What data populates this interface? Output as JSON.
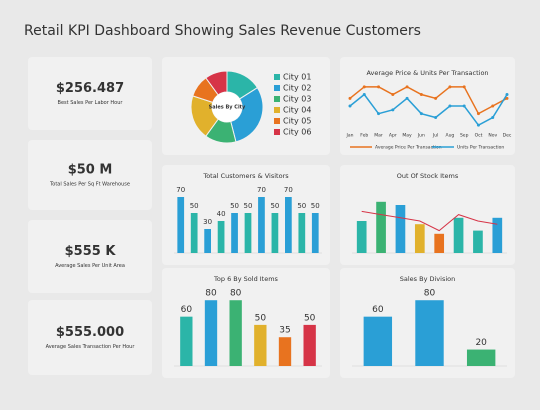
{
  "title": "Retail KPI Dashboard Showing Sales Revenue Customers",
  "kpis": [
    {
      "value": "$256.487",
      "label": "Best Sales Per Labor Hour"
    },
    {
      "value": "$50 M",
      "label": "Total Sales Per Sq Ft Warehouse"
    },
    {
      "value": "$555 K",
      "label": "Average Sales Per Unit Area"
    },
    {
      "value": "$555.000",
      "label": "Average Sales Transaction Per Hour"
    }
  ],
  "chart_data": [
    {
      "type": "pie",
      "title": "Sales By City",
      "donut": true,
      "categories": [
        "City 01",
        "City 02",
        "City 03",
        "City 04",
        "City 05",
        "City 06"
      ],
      "values": [
        16,
        30,
        14,
        20,
        10,
        10
      ],
      "colors": [
        "#2bb5a8",
        "#2a9fd6",
        "#3bb273",
        "#e1b12c",
        "#e8731f",
        "#d63447"
      ]
    },
    {
      "type": "line",
      "title": "Average Price & Units Per Transaction",
      "categories": [
        "Jan",
        "Feb",
        "Mar",
        "Apr",
        "May",
        "Jun",
        "Jul",
        "Aug",
        "Sep",
        "Oct",
        "Nov",
        "Dec"
      ],
      "series": [
        {
          "name": "Average Price Per Transaction",
          "color": "#e8731f",
          "values": [
            80,
            95,
            95,
            85,
            95,
            85,
            80,
            95,
            95,
            60,
            70,
            80
          ]
        },
        {
          "name": "Units Per Transaction",
          "color": "#2a9fd6",
          "values": [
            70,
            85,
            60,
            65,
            80,
            60,
            55,
            70,
            70,
            45,
            55,
            85
          ]
        }
      ],
      "ylim": [
        40,
        100
      ]
    },
    {
      "type": "bar",
      "title": "Total Customers & Visitors",
      "data_labels": true,
      "values": [
        70,
        50,
        30,
        40,
        50,
        50,
        70,
        50,
        70,
        50,
        50
      ],
      "colors": [
        "#2a9fd6",
        "#2bb5a8",
        "#2a9fd6",
        "#2bb5a8",
        "#2a9fd6",
        "#2bb5a8",
        "#2a9fd6",
        "#2bb5a8",
        "#2a9fd6",
        "#2bb5a8",
        "#2a9fd6"
      ],
      "ylim": [
        0,
        80
      ]
    },
    {
      "type": "bar",
      "title": "Out Of Stock Items",
      "data_labels": false,
      "values": [
        50,
        80,
        75,
        45,
        30,
        55,
        35,
        55
      ],
      "colors": [
        "#2bb5a8",
        "#3bb273",
        "#2a9fd6",
        "#e1b12c",
        "#e8731f",
        "#2bb5a8",
        "#2bb5a8",
        "#2a9fd6"
      ],
      "line": {
        "color": "#d63447",
        "values": [
          65,
          60,
          55,
          50,
          35,
          60,
          50,
          45
        ]
      },
      "ylim": [
        0,
        100
      ]
    },
    {
      "type": "bar",
      "title": "Top 6 By Sold Items",
      "data_labels": true,
      "values": [
        60,
        80,
        80,
        50,
        35,
        50
      ],
      "colors": [
        "#2bb5a8",
        "#2a9fd6",
        "#3bb273",
        "#e1b12c",
        "#e8731f",
        "#d63447"
      ],
      "ylim": [
        0,
        90
      ]
    },
    {
      "type": "bar",
      "title": "Sales By Division",
      "data_labels": true,
      "values": [
        60,
        80,
        20
      ],
      "colors": [
        "#2a9fd6",
        "#2a9fd6",
        "#3bb273"
      ],
      "ylim": [
        0,
        90
      ]
    }
  ]
}
